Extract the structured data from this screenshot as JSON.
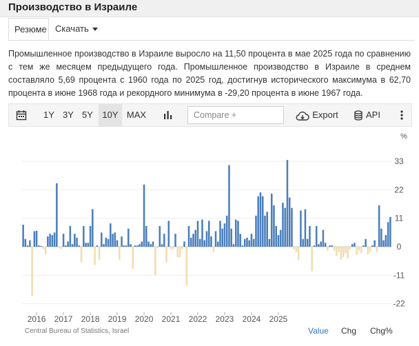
{
  "header": {
    "title": "Производство в Израиле"
  },
  "tabs": [
    {
      "label": "Резюме"
    },
    {
      "label": "Скачать"
    }
  ],
  "description": "Промышленное производство в Израиле выросло на 11,50 процента в мае 2025 года по сравнению с тем же месяцем предыдущего года. Промышленное производство в Израиле в среднем составляло 5,69 процента с 1960 года по 2025 год, достигнув исторического максимума в 62,70 процента в июне 1968 года и рекордного минимума в -29,20 процента в июне 1967 года.",
  "toolbar": {
    "ranges": [
      "1Y",
      "3Y",
      "5Y",
      "10Y",
      "MAX"
    ],
    "selected_range": "10Y",
    "compare_placeholder": "Compare +",
    "export_label": "Export",
    "api_label": "API",
    "icons": [
      "calendar-icon",
      "bar-chart-icon",
      "cloud-download-icon",
      "database-icon",
      "more-vertical-icon"
    ]
  },
  "footer": {
    "source": "Central Bureau of Statistics, Israel",
    "value_label": "Value",
    "chg_label": "Chg",
    "chgp_label": "Chg%"
  },
  "colors": {
    "positive": "#4a7ebb",
    "negative": "#f2dcae",
    "accent": "#2d7ac4"
  },
  "chart_data": {
    "type": "bar",
    "ylabel": "%",
    "ylim": [
      -22,
      33
    ],
    "yticks": [
      33,
      22,
      11,
      0,
      -11,
      -22
    ],
    "xticks": [
      "2016",
      "2017",
      "2018",
      "2019",
      "2020",
      "2021",
      "2022",
      "2023",
      "2024",
      "2025"
    ],
    "x_start": "2015-07",
    "frequency": "monthly",
    "values": [
      8.5,
      3,
      0.5,
      2.5,
      -19,
      6,
      6.2,
      0.5,
      0.3,
      -1,
      -3,
      4,
      5,
      4.5,
      5.5,
      24.5,
      -0.5,
      -1,
      5,
      0.5,
      2,
      8,
      1,
      5,
      3.5,
      0.5,
      -6,
      8,
      1.5,
      1.5,
      8,
      14.5,
      -7,
      0.5,
      -5,
      5.5,
      1,
      3.5,
      3,
      9,
      5,
      5.5,
      2.5,
      -5,
      4,
      0.5,
      0.5,
      7,
      1,
      -8.5,
      0.5,
      0.5,
      1,
      2,
      24,
      8,
      2,
      1,
      2,
      -11,
      -0.5,
      8,
      1,
      5,
      -6,
      10,
      -1,
      -1,
      5,
      -4,
      -4,
      -1,
      2,
      -15,
      8,
      3.5,
      5,
      6.5,
      10,
      3,
      10.5,
      2.5,
      6,
      10,
      4,
      -2,
      6,
      2,
      10,
      7,
      9,
      12,
      31.5,
      7,
      1,
      10.5,
      10,
      5,
      0.5,
      3,
      3.5,
      2.5,
      5,
      3,
      12,
      19.5,
      21,
      19.5,
      12,
      13.5,
      3,
      20.5,
      16,
      8,
      4.5,
      6.5,
      17,
      15,
      33.5,
      19,
      15,
      -1,
      -2,
      -5,
      14,
      3,
      14.5,
      3,
      8,
      -9.5,
      0.5,
      8,
      1,
      2,
      6.5,
      1.5,
      -1.5,
      0.5,
      0.5,
      -1.5,
      -3.5,
      -2,
      -5,
      -4,
      -2.5,
      -4.5,
      -1,
      1,
      1.5,
      -3,
      -1.5,
      -2.5,
      0.5,
      3,
      -3,
      -2,
      0.5,
      2.5,
      -2,
      16,
      7,
      2.5,
      4.5,
      9.5,
      11.5
    ]
  }
}
